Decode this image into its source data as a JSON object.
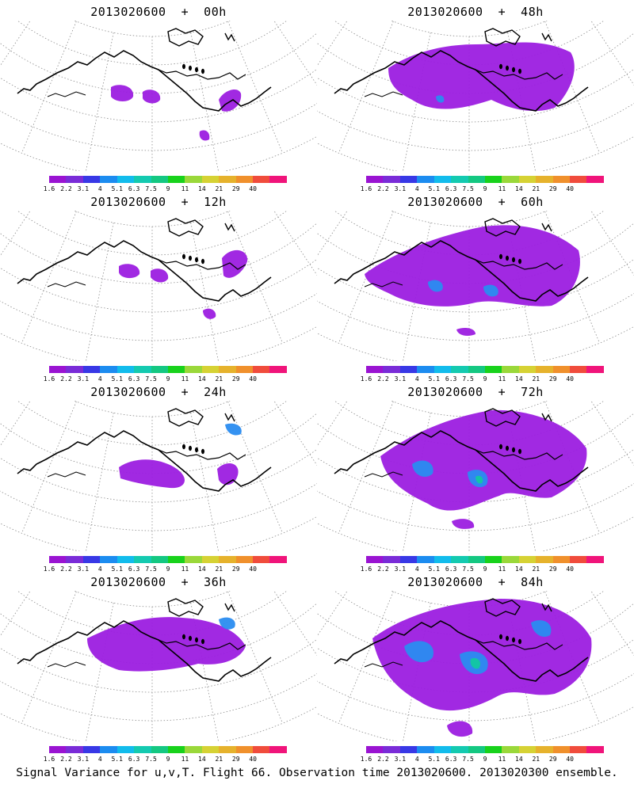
{
  "panels": [
    {
      "title": "2013020600  +  00h",
      "forecast_hour": 0
    },
    {
      "title": "2013020600  +  48h",
      "forecast_hour": 48
    },
    {
      "title": "2013020600  +  12h",
      "forecast_hour": 12
    },
    {
      "title": "2013020600  +  60h",
      "forecast_hour": 60
    },
    {
      "title": "2013020600  +  24h",
      "forecast_hour": 24
    },
    {
      "title": "2013020600  +  72h",
      "forecast_hour": 72
    },
    {
      "title": "2013020600  +  36h",
      "forecast_hour": 36
    },
    {
      "title": "2013020600  +  84h",
      "forecast_hour": 84
    }
  ],
  "colorbar": {
    "labels": [
      "1.6",
      "2.2",
      "3.1",
      "4",
      "5.1",
      "6.3",
      "7.5",
      "9",
      "11",
      "14",
      "21",
      "29",
      "40"
    ],
    "colors": [
      "#9a14d2",
      "#7a2cd8",
      "#3838e6",
      "#1c8cf0",
      "#12bcec",
      "#14cab0",
      "#14c882",
      "#18d21c",
      "#9ad83a",
      "#d6d234",
      "#e6b22c",
      "#f0902c",
      "#f04c3c",
      "#f0147a"
    ]
  },
  "map_colors": {
    "low": "#9c1ee0",
    "mid": "#2a8cf0",
    "high": "#12c8a0",
    "coast": "#000000",
    "grid": "#8c8c8c"
  },
  "footer": "Signal Variance for u,v,T. Flight 66. Observation time 2013020600. 2013020300 ensemble."
}
